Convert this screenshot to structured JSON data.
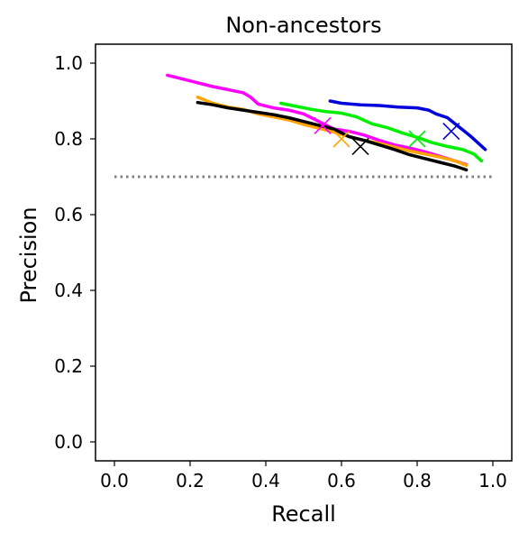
{
  "chart_data": {
    "type": "line",
    "title": "Non-ancestors",
    "xlabel": "Recall",
    "ylabel": "Precision",
    "xlim": [
      -0.05,
      1.05
    ],
    "ylim": [
      -0.05,
      1.05
    ],
    "xticks": [
      "0.0",
      "0.2",
      "0.4",
      "0.6",
      "0.8",
      "1.0"
    ],
    "yticks": [
      "0.0",
      "0.2",
      "0.4",
      "0.6",
      "0.8",
      "1.0"
    ],
    "grid": false,
    "legend": "none",
    "reference_line": {
      "y": 0.7,
      "x_range": [
        0.0,
        1.0
      ],
      "style": "dotted",
      "color": "#808080"
    },
    "series": [
      {
        "color": "#0000dd",
        "x": [
          0.57,
          0.6,
          0.65,
          0.7,
          0.75,
          0.8,
          0.83,
          0.85,
          0.88,
          0.9,
          0.92,
          0.94,
          0.96,
          0.98
        ],
        "y": [
          0.9,
          0.894,
          0.89,
          0.888,
          0.884,
          0.882,
          0.876,
          0.866,
          0.856,
          0.84,
          0.824,
          0.808,
          0.79,
          0.772
        ],
        "marker": {
          "x": 0.89,
          "y": 0.82
        }
      },
      {
        "color": "#00ee00",
        "x": [
          0.44,
          0.48,
          0.52,
          0.56,
          0.6,
          0.64,
          0.68,
          0.72,
          0.76,
          0.8,
          0.84,
          0.88,
          0.92,
          0.95,
          0.97
        ],
        "y": [
          0.894,
          0.886,
          0.878,
          0.872,
          0.868,
          0.858,
          0.84,
          0.83,
          0.816,
          0.804,
          0.79,
          0.78,
          0.772,
          0.76,
          0.742
        ],
        "marker": {
          "x": 0.8,
          "y": 0.8
        }
      },
      {
        "color": "#ff00ff",
        "x": [
          0.14,
          0.18,
          0.22,
          0.26,
          0.3,
          0.34,
          0.36,
          0.38,
          0.42,
          0.46,
          0.5,
          0.54,
          0.58,
          0.62,
          0.66,
          0.7,
          0.74,
          0.78,
          0.82,
          0.86,
          0.9,
          0.93
        ],
        "y": [
          0.968,
          0.958,
          0.948,
          0.938,
          0.93,
          0.922,
          0.91,
          0.892,
          0.882,
          0.876,
          0.866,
          0.846,
          0.826,
          0.82,
          0.81,
          0.796,
          0.784,
          0.776,
          0.766,
          0.754,
          0.742,
          0.732
        ],
        "marker": {
          "x": 0.55,
          "y": 0.835
        }
      },
      {
        "color": "#ffa500",
        "x": [
          0.22,
          0.26,
          0.3,
          0.34,
          0.38,
          0.42,
          0.46,
          0.5,
          0.54,
          0.58,
          0.62,
          0.66,
          0.7,
          0.74,
          0.78,
          0.82,
          0.86,
          0.9,
          0.93
        ],
        "y": [
          0.91,
          0.894,
          0.884,
          0.878,
          0.866,
          0.858,
          0.85,
          0.838,
          0.828,
          0.818,
          0.806,
          0.796,
          0.788,
          0.778,
          0.768,
          0.76,
          0.752,
          0.742,
          0.73
        ],
        "marker": {
          "x": 0.6,
          "y": 0.8
        }
      },
      {
        "color": "#000000",
        "x": [
          0.22,
          0.26,
          0.3,
          0.34,
          0.38,
          0.42,
          0.46,
          0.5,
          0.54,
          0.58,
          0.62,
          0.66,
          0.7,
          0.74,
          0.78,
          0.82,
          0.86,
          0.9,
          0.93
        ],
        "y": [
          0.896,
          0.89,
          0.882,
          0.876,
          0.87,
          0.864,
          0.856,
          0.846,
          0.836,
          0.826,
          0.806,
          0.796,
          0.784,
          0.772,
          0.758,
          0.748,
          0.738,
          0.728,
          0.718
        ],
        "marker": {
          "x": 0.65,
          "y": 0.78
        }
      }
    ]
  }
}
